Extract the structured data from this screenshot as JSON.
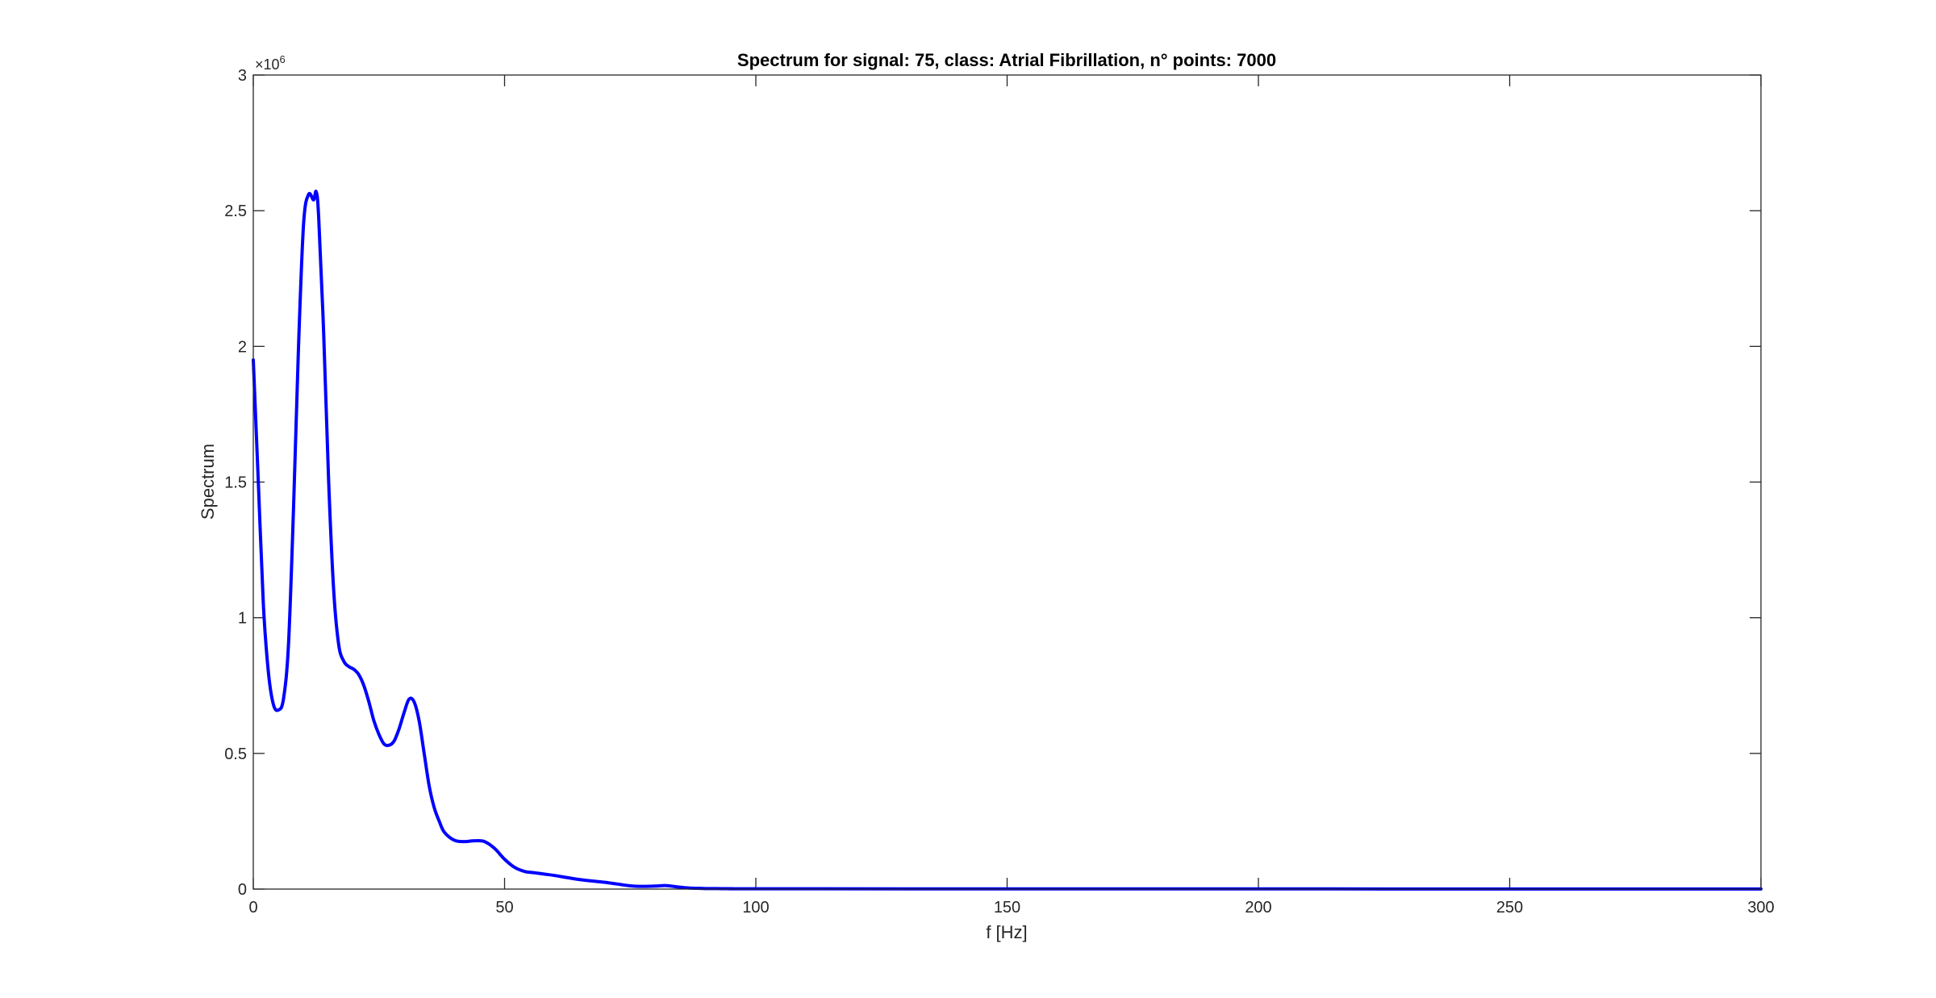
{
  "chart_data": {
    "type": "line",
    "title": "Spectrum for signal: 75, class: Atrial Fibrillation, n° points: 7000",
    "xlabel": "f [Hz]",
    "ylabel": "Spectrum",
    "xlim": [
      0,
      300
    ],
    "ylim": [
      0,
      3000000
    ],
    "x_ticks": [
      0,
      50,
      100,
      150,
      200,
      250,
      300
    ],
    "x_tick_labels": [
      "0",
      "50",
      "100",
      "150",
      "200",
      "250",
      "300"
    ],
    "y_ticks": [
      0,
      500000,
      1000000,
      1500000,
      2000000,
      2500000,
      3000000
    ],
    "y_tick_labels": [
      "0",
      "0.5",
      "1",
      "1.5",
      "2",
      "2.5",
      "3"
    ],
    "y_exponent_base": "×10",
    "y_exponent_power": "6",
    "grid": false,
    "box": true,
    "series": [
      {
        "color": "#0000ff",
        "x": [
          0,
          1,
          2,
          3,
          4,
          5,
          6,
          7,
          8,
          9,
          10,
          11,
          12,
          12.5,
          13,
          14,
          15,
          16,
          17,
          18,
          19,
          20,
          21,
          22,
          23,
          24,
          25,
          26,
          27,
          28,
          29,
          30,
          31,
          32,
          33,
          34,
          35,
          36,
          37,
          38,
          40,
          42,
          44,
          46,
          48,
          50,
          52,
          54,
          56,
          58,
          60,
          65,
          70,
          75,
          78,
          80,
          82,
          84,
          86,
          88,
          90,
          95,
          100,
          150,
          200,
          250,
          300
        ],
        "y": [
          1950000,
          1500000,
          1050000,
          800000,
          680000,
          660000,
          700000,
          900000,
          1400000,
          2000000,
          2450000,
          2560000,
          2540000,
          2570000,
          2480000,
          2050000,
          1500000,
          1100000,
          900000,
          840000,
          820000,
          810000,
          790000,
          750000,
          690000,
          620000,
          570000,
          535000,
          530000,
          545000,
          590000,
          650000,
          700000,
          690000,
          620000,
          500000,
          380000,
          300000,
          250000,
          210000,
          180000,
          175000,
          178000,
          175000,
          150000,
          110000,
          80000,
          65000,
          60000,
          55000,
          50000,
          35000,
          25000,
          12000,
          10000,
          11000,
          13000,
          9000,
          5000,
          3000,
          2000,
          1500,
          1000,
          800,
          600,
          500,
          400
        ]
      }
    ]
  }
}
